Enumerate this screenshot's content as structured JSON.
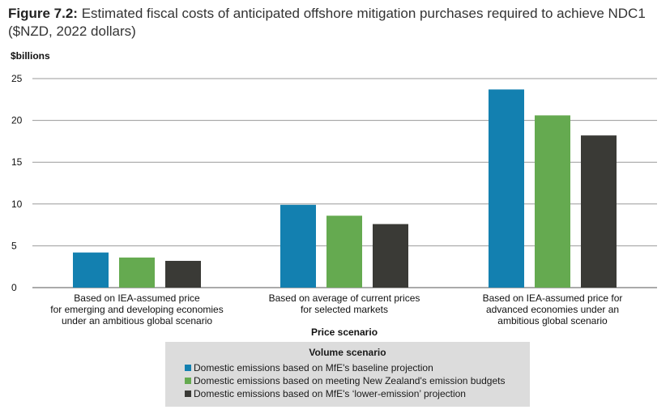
{
  "figure": {
    "label": "Figure 7.2:",
    "text": " Estimated fiscal costs of anticipated offshore mitigation purchases required to achieve NDC1 ($NZD, 2022 dollars)"
  },
  "chart_data": {
    "type": "bar",
    "ylabel": "$billions",
    "xlabel": "Price scenario",
    "ylim": [
      0,
      25
    ],
    "yticks": [
      0,
      5,
      10,
      15,
      20,
      25
    ],
    "grid": true,
    "categories": [
      [
        "Based on IEA-assumed price",
        "for emerging and developing economies",
        "under an ambitious global scenario"
      ],
      [
        "Based on average of current prices",
        "for selected markets"
      ],
      [
        "Based on IEA-assumed price for",
        "advanced economies under an",
        "ambitious global scenario"
      ]
    ],
    "legend_title": "Volume scenario",
    "legend_position": "bottom",
    "series": [
      {
        "name": "Domestic emissions based on MfE's baseline projection",
        "color": "#1380b0",
        "values": [
          4.2,
          9.9,
          23.7
        ]
      },
      {
        "name": "Domestic emissions based on meeting New Zealand's emission budgets",
        "color": "#65aa50",
        "values": [
          3.6,
          8.6,
          20.6
        ]
      },
      {
        "name": "Domestic emissions based on MfE's ‘lower-emission’ projection",
        "color": "#3a3a36",
        "values": [
          3.2,
          7.6,
          18.2
        ]
      }
    ]
  }
}
